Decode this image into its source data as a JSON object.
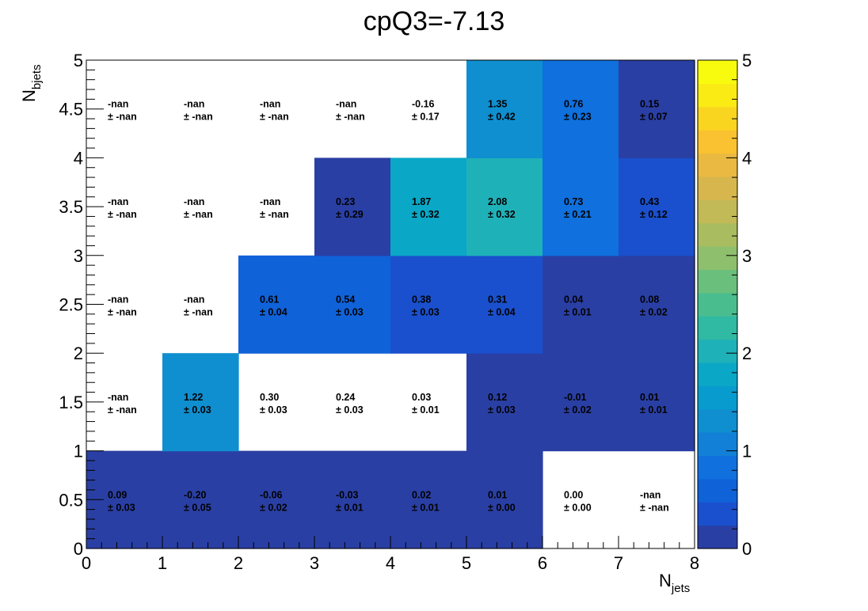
{
  "chart_data": {
    "type": "heatmap",
    "title": "cpQ3=-7.13",
    "xlabel": "N",
    "xlabel_sub": "jets",
    "ylabel": "N",
    "ylabel_sub": "bjets",
    "x_edges": [
      0,
      1,
      2,
      3,
      4,
      5,
      6,
      7,
      8
    ],
    "y_edges": [
      0,
      1,
      2,
      3,
      4,
      5
    ],
    "xlim": [
      0,
      8
    ],
    "ylim": [
      0,
      5
    ],
    "x_ticks": [
      "0",
      "1",
      "2",
      "3",
      "4",
      "5",
      "6",
      "7",
      "8"
    ],
    "y_ticks": [
      "0",
      "0.5",
      "1",
      "1.5",
      "2",
      "2.5",
      "3",
      "3.5",
      "4",
      "4.5",
      "5"
    ],
    "colorbar": {
      "range": [
        0,
        5
      ],
      "ticks": [
        "0",
        "1",
        "2",
        "3",
        "4",
        "5"
      ]
    },
    "cells": [
      {
        "x": 0,
        "y": 0,
        "value": "0.09",
        "error": "0.03",
        "z": 0.09
      },
      {
        "x": 1,
        "y": 0,
        "value": "-0.20",
        "error": "0.05",
        "z": -0.2
      },
      {
        "x": 2,
        "y": 0,
        "value": "-0.06",
        "error": "0.02",
        "z": -0.06
      },
      {
        "x": 3,
        "y": 0,
        "value": "-0.03",
        "error": "0.01",
        "z": -0.03
      },
      {
        "x": 4,
        "y": 0,
        "value": "0.02",
        "error": "0.01",
        "z": 0.02
      },
      {
        "x": 5,
        "y": 0,
        "value": "0.01",
        "error": "0.00",
        "z": 0.01
      },
      {
        "x": 6,
        "y": 0,
        "value": "0.00",
        "error": "0.00",
        "z": null
      },
      {
        "x": 7,
        "y": 0,
        "value": "-nan",
        "error": "-nan",
        "z": null
      },
      {
        "x": 0,
        "y": 1,
        "value": "-nan",
        "error": "-nan",
        "z": null
      },
      {
        "x": 1,
        "y": 1,
        "value": "1.22",
        "error": "0.03",
        "z": 1.22
      },
      {
        "x": 2,
        "y": 1,
        "value": "0.30",
        "error": "0.03",
        "z": null
      },
      {
        "x": 3,
        "y": 1,
        "value": "0.24",
        "error": "0.03",
        "z": null
      },
      {
        "x": 4,
        "y": 1,
        "value": "0.03",
        "error": "0.01",
        "z": null
      },
      {
        "x": 5,
        "y": 1,
        "value": "0.12",
        "error": "0.03",
        "z": 0.12
      },
      {
        "x": 6,
        "y": 1,
        "value": "-0.01",
        "error": "0.02",
        "z": -0.01
      },
      {
        "x": 7,
        "y": 1,
        "value": "0.01",
        "error": "0.01",
        "z": 0.01
      },
      {
        "x": 0,
        "y": 2,
        "value": "-nan",
        "error": "-nan",
        "z": null
      },
      {
        "x": 1,
        "y": 2,
        "value": "-nan",
        "error": "-nan",
        "z": null
      },
      {
        "x": 2,
        "y": 2,
        "value": "0.61",
        "error": "0.04",
        "z": 0.61
      },
      {
        "x": 3,
        "y": 2,
        "value": "0.54",
        "error": "0.03",
        "z": 0.54
      },
      {
        "x": 4,
        "y": 2,
        "value": "0.38",
        "error": "0.03",
        "z": 0.38
      },
      {
        "x": 5,
        "y": 2,
        "value": "0.31",
        "error": "0.04",
        "z": 0.31
      },
      {
        "x": 6,
        "y": 2,
        "value": "0.04",
        "error": "0.01",
        "z": 0.04
      },
      {
        "x": 7,
        "y": 2,
        "value": "0.08",
        "error": "0.02",
        "z": 0.08
      },
      {
        "x": 0,
        "y": 3,
        "value": "-nan",
        "error": "-nan",
        "z": null
      },
      {
        "x": 1,
        "y": 3,
        "value": "-nan",
        "error": "-nan",
        "z": null
      },
      {
        "x": 2,
        "y": 3,
        "value": "-nan",
        "error": "-nan",
        "z": null
      },
      {
        "x": 3,
        "y": 3,
        "value": "0.23",
        "error": "0.29",
        "z": 0.23
      },
      {
        "x": 4,
        "y": 3,
        "value": "1.87",
        "error": "0.32",
        "z": 1.87
      },
      {
        "x": 5,
        "y": 3,
        "value": "2.08",
        "error": "0.32",
        "z": 2.08
      },
      {
        "x": 6,
        "y": 3,
        "value": "0.73",
        "error": "0.21",
        "z": 0.73
      },
      {
        "x": 7,
        "y": 3,
        "value": "0.43",
        "error": "0.12",
        "z": 0.43
      },
      {
        "x": 0,
        "y": 4,
        "value": "-nan",
        "error": "-nan",
        "z": null
      },
      {
        "x": 1,
        "y": 4,
        "value": "-nan",
        "error": "-nan",
        "z": null
      },
      {
        "x": 2,
        "y": 4,
        "value": "-nan",
        "error": "-nan",
        "z": null
      },
      {
        "x": 3,
        "y": 4,
        "value": "-nan",
        "error": "-nan",
        "z": null
      },
      {
        "x": 4,
        "y": 4,
        "value": "-0.16",
        "error": "0.17",
        "z": null
      },
      {
        "x": 5,
        "y": 4,
        "value": "1.35",
        "error": "0.42",
        "z": 1.35
      },
      {
        "x": 6,
        "y": 4,
        "value": "0.76",
        "error": "0.23",
        "z": 0.76
      },
      {
        "x": 7,
        "y": 4,
        "value": "0.15",
        "error": "0.07",
        "z": 0.15
      }
    ],
    "error_prefix": "± ",
    "colormap": [
      "#2a3fa4",
      "#1a50cd",
      "#1062d9",
      "#0f70de",
      "#1280d6",
      "#0f8fd0",
      "#079bce",
      "#0aa7c7",
      "#1fb1b8",
      "#30b9a3",
      "#4abd8f",
      "#6bbf7c",
      "#8dbf6c",
      "#a9bd60",
      "#c2b957",
      "#d7b74d",
      "#eab941",
      "#fac231",
      "#fad520",
      "#fbeb14",
      "#f9fb0e"
    ]
  }
}
